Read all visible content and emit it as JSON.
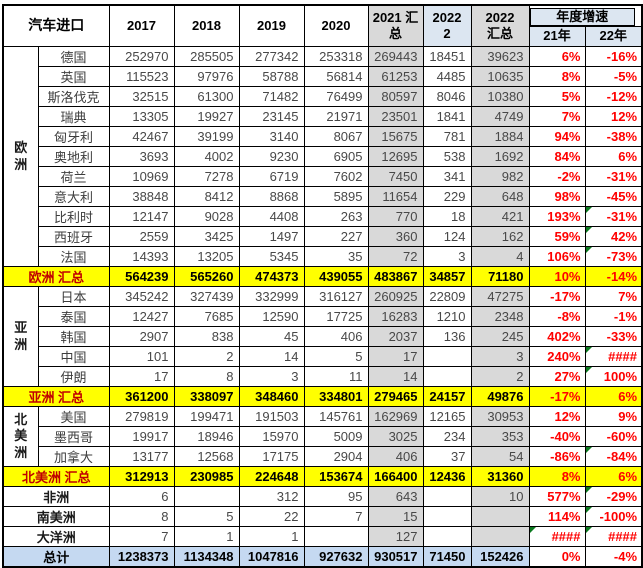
{
  "header": {
    "title": "汽车进口",
    "years": [
      "2017",
      "2018",
      "2019",
      "2020"
    ],
    "sum2021_lines": [
      "2021 汇",
      "总"
    ],
    "feb2022_lines": [
      "2022",
      "2"
    ],
    "sum2022_lines": [
      "2022",
      "汇总"
    ],
    "growth_title": "年度增速",
    "growth_cols": [
      "21年",
      "22年"
    ]
  },
  "colors": {
    "subtotal_bg": "#FFFF00",
    "gray_column_bg": "#D9D9D9",
    "header_blue_bg": "#DCE6F1",
    "total_row_bg": "#C5D9F1",
    "percent_text": "#FF0000",
    "subtotal_label_text": "#C00000",
    "marker_green": "#0a7a1e"
  },
  "sections": [
    {
      "group": "欧洲",
      "rows": [
        {
          "label": "德国",
          "values": [
            "252970",
            "285505",
            "277342",
            "253318",
            "269443",
            "18451",
            "39623"
          ],
          "pct": [
            "6%",
            "-16%"
          ],
          "marks": [
            false,
            false
          ]
        },
        {
          "label": "英国",
          "values": [
            "115523",
            "97976",
            "58788",
            "56814",
            "61253",
            "4485",
            "10635"
          ],
          "pct": [
            "8%",
            "-5%"
          ],
          "marks": [
            false,
            false
          ]
        },
        {
          "label": "斯洛伐克",
          "values": [
            "32515",
            "61300",
            "71482",
            "76499",
            "80597",
            "8046",
            "10380"
          ],
          "pct": [
            "5%",
            "-12%"
          ],
          "marks": [
            false,
            false
          ]
        },
        {
          "label": "瑞典",
          "values": [
            "13305",
            "19927",
            "23145",
            "21971",
            "23501",
            "1841",
            "4749"
          ],
          "pct": [
            "7%",
            "12%"
          ],
          "marks": [
            false,
            false
          ]
        },
        {
          "label": "匈牙利",
          "values": [
            "42467",
            "39199",
            "3140",
            "8067",
            "15675",
            "781",
            "1884"
          ],
          "pct": [
            "94%",
            "-38%"
          ],
          "marks": [
            false,
            false
          ]
        },
        {
          "label": "奥地利",
          "values": [
            "3693",
            "4002",
            "9230",
            "6905",
            "12695",
            "538",
            "1692"
          ],
          "pct": [
            "84%",
            "6%"
          ],
          "marks": [
            false,
            false
          ]
        },
        {
          "label": "荷兰",
          "values": [
            "10969",
            "7278",
            "6719",
            "7602",
            "7450",
            "341",
            "982"
          ],
          "pct": [
            "-2%",
            "-31%"
          ],
          "marks": [
            false,
            false
          ]
        },
        {
          "label": "意大利",
          "values": [
            "38848",
            "8412",
            "8868",
            "5895",
            "11654",
            "229",
            "648"
          ],
          "pct": [
            "98%",
            "-45%"
          ],
          "marks": [
            false,
            false
          ]
        },
        {
          "label": "比利时",
          "values": [
            "12147",
            "9028",
            "4408",
            "263",
            "770",
            "18",
            "421"
          ],
          "pct": [
            "193%",
            "-31%"
          ],
          "marks": [
            false,
            true
          ]
        },
        {
          "label": "西班牙",
          "values": [
            "2559",
            "3425",
            "1497",
            "227",
            "360",
            "124",
            "162"
          ],
          "pct": [
            "59%",
            "42%"
          ],
          "marks": [
            false,
            true
          ]
        },
        {
          "label": "法国",
          "values": [
            "14393",
            "13205",
            "5345",
            "35",
            "72",
            "3",
            "4"
          ],
          "pct": [
            "106%",
            "-73%"
          ],
          "marks": [
            false,
            true
          ]
        }
      ],
      "subtotal": {
        "label": "欧洲 汇总",
        "values": [
          "564239",
          "565260",
          "474373",
          "439055",
          "483867",
          "34857",
          "71180"
        ],
        "pct": [
          "10%",
          "-14%"
        ]
      }
    },
    {
      "group": "亚洲",
      "rows": [
        {
          "label": "日本",
          "values": [
            "345242",
            "327439",
            "332999",
            "316127",
            "260925",
            "22809",
            "47275"
          ],
          "pct": [
            "-17%",
            "7%"
          ],
          "marks": [
            false,
            false
          ]
        },
        {
          "label": "泰国",
          "values": [
            "12427",
            "7685",
            "12590",
            "17725",
            "16283",
            "1210",
            "2348"
          ],
          "pct": [
            "-8%",
            "-1%"
          ],
          "marks": [
            false,
            false
          ]
        },
        {
          "label": "韩国",
          "values": [
            "2907",
            "838",
            "45",
            "406",
            "2037",
            "136",
            "245"
          ],
          "pct": [
            "402%",
            "-33%"
          ],
          "marks": [
            false,
            false
          ]
        },
        {
          "label": "中国",
          "values": [
            "101",
            "2",
            "14",
            "5",
            "17",
            "",
            "3"
          ],
          "pct": [
            "240%",
            "####"
          ],
          "marks": [
            false,
            true
          ]
        },
        {
          "label": "伊朗",
          "values": [
            "17",
            "8",
            "3",
            "11",
            "14",
            "",
            "2"
          ],
          "pct": [
            "27%",
            "100%"
          ],
          "marks": [
            false,
            true
          ]
        }
      ],
      "subtotal": {
        "label": "亚洲 汇总",
        "values": [
          "361200",
          "338097",
          "348460",
          "334801",
          "279465",
          "24157",
          "49876"
        ],
        "pct": [
          "-17%",
          "6%"
        ]
      }
    },
    {
      "group": "北美洲",
      "rows": [
        {
          "label": "美国",
          "values": [
            "279819",
            "199471",
            "191503",
            "145761",
            "162969",
            "12165",
            "30953"
          ],
          "pct": [
            "12%",
            "9%"
          ],
          "marks": [
            false,
            false
          ]
        },
        {
          "label": "墨西哥",
          "values": [
            "19917",
            "18946",
            "15970",
            "5009",
            "3025",
            "234",
            "353"
          ],
          "pct": [
            "-40%",
            "-60%"
          ],
          "marks": [
            false,
            false
          ]
        },
        {
          "label": "加拿大",
          "values": [
            "13177",
            "12568",
            "17175",
            "2904",
            "406",
            "37",
            "54"
          ],
          "pct": [
            "-86%",
            "-84%"
          ],
          "marks": [
            false,
            true
          ]
        }
      ],
      "subtotal": {
        "label": "北美洲 汇总",
        "values": [
          "312913",
          "230985",
          "224648",
          "153674",
          "166400",
          "12436",
          "31360"
        ],
        "pct": [
          "8%",
          "6%"
        ]
      }
    }
  ],
  "other_rows": [
    {
      "label": "非洲",
      "values": [
        "6",
        "",
        "312",
        "95",
        "643",
        "",
        "10"
      ],
      "pct": [
        "577%",
        "-29%"
      ],
      "marks": [
        false,
        true
      ]
    },
    {
      "label": "南美洲",
      "values": [
        "8",
        "5",
        "22",
        "7",
        "15",
        "",
        ""
      ],
      "pct": [
        "114%",
        "-100%"
      ],
      "marks": [
        false,
        true
      ]
    },
    {
      "label": "大洋洲",
      "values": [
        "7",
        "1",
        "1",
        "",
        "127",
        "",
        ""
      ],
      "pct": [
        "####",
        "####"
      ],
      "marks": [
        true,
        true
      ]
    }
  ],
  "total_row": {
    "label": "总计",
    "values": [
      "1238373",
      "1134348",
      "1047816",
      "927632",
      "930517",
      "71450",
      "152426"
    ],
    "pct": [
      "0%",
      "-4%"
    ]
  }
}
